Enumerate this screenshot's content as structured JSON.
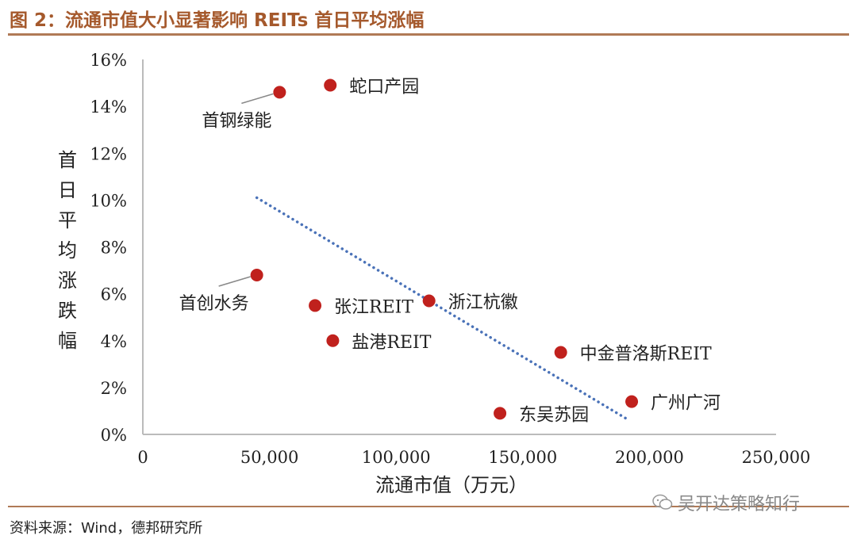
{
  "header": {
    "title": "图 2：流通市值大小显著影响 REITs 首日平均涨幅"
  },
  "footer": {
    "source": "资料来源：Wind，德邦研究所",
    "watermark": "吴开达策略知行"
  },
  "colors": {
    "accent": "#a5592c",
    "point": "#c0211d",
    "trend": "#4a72b8",
    "axis": "#bbbbbb"
  },
  "chart_data": {
    "type": "scatter",
    "title": "",
    "xlabel": "流通市值（万元）",
    "ylabel": "首日平均涨跌幅",
    "xlim": [
      0,
      250000
    ],
    "ylim": [
      0,
      0.16
    ],
    "x_ticks": [
      {
        "value": 0,
        "label": "0"
      },
      {
        "value": 50000,
        "label": "50,000"
      },
      {
        "value": 100000,
        "label": "100,000"
      },
      {
        "value": 150000,
        "label": "150,000"
      },
      {
        "value": 200000,
        "label": "200,000"
      },
      {
        "value": 250000,
        "label": "250,000"
      }
    ],
    "y_ticks": [
      {
        "value": 0,
        "label": "0%"
      },
      {
        "value": 0.02,
        "label": "2%"
      },
      {
        "value": 0.04,
        "label": "4%"
      },
      {
        "value": 0.06,
        "label": "6%"
      },
      {
        "value": 0.08,
        "label": "8%"
      },
      {
        "value": 0.1,
        "label": "10%"
      },
      {
        "value": 0.12,
        "label": "12%"
      },
      {
        "value": 0.14,
        "label": "14%"
      },
      {
        "value": 0.16,
        "label": "16%"
      }
    ],
    "points": [
      {
        "label": "蛇口产园",
        "x": 74000,
        "y": 0.149,
        "label_pos": "right"
      },
      {
        "label": "首钢绿能",
        "x": 54000,
        "y": 0.146,
        "label_pos": "below-left",
        "leader": true
      },
      {
        "label": "首创水务",
        "x": 45000,
        "y": 0.068,
        "label_pos": "below-left",
        "leader": true
      },
      {
        "label": "张江REIT",
        "x": 68000,
        "y": 0.055,
        "label_pos": "right"
      },
      {
        "label": "浙江杭徽",
        "x": 113000,
        "y": 0.057,
        "label_pos": "right"
      },
      {
        "label": "盐港REIT",
        "x": 75000,
        "y": 0.04,
        "label_pos": "right"
      },
      {
        "label": "中金普洛斯REIT",
        "x": 165000,
        "y": 0.035,
        "label_pos": "right"
      },
      {
        "label": "东吴苏园",
        "x": 141000,
        "y": 0.009,
        "label_pos": "right"
      },
      {
        "label": "广州广河",
        "x": 193000,
        "y": 0.014,
        "label_pos": "right"
      }
    ],
    "trendline": {
      "style": "dotted",
      "x": [
        45000,
        192000
      ],
      "y": [
        0.101,
        0.006
      ]
    },
    "grid": false,
    "legend": "none"
  }
}
